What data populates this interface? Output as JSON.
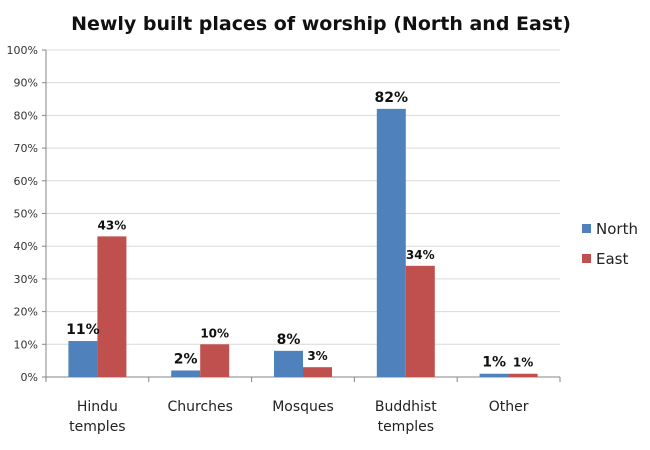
{
  "chart_data": {
    "type": "bar",
    "title": "Newly built places of worship (North and East)",
    "categories": [
      [
        "Hindu",
        "temples"
      ],
      [
        "Churches"
      ],
      [
        "Mosques"
      ],
      [
        "Buddhist",
        "temples"
      ],
      [
        "Other"
      ]
    ],
    "series": [
      {
        "name": "North",
        "values": [
          11,
          2,
          8,
          82,
          1
        ],
        "labels": [
          "11%",
          "2%",
          "8%",
          "82%",
          "1%"
        ],
        "color": "#4f81bd"
      },
      {
        "name": "East",
        "values": [
          43,
          10,
          3,
          34,
          1
        ],
        "labels": [
          "43%",
          "10%",
          "3%",
          "34%",
          "1%"
        ],
        "color": "#c0504d"
      }
    ],
    "yticks": [
      "0%",
      "10%",
      "20%",
      "30%",
      "40%",
      "50%",
      "60%",
      "70%",
      "80%",
      "90%",
      "100%"
    ],
    "ylim": [
      0,
      100
    ],
    "grid": true,
    "legend": "right"
  }
}
